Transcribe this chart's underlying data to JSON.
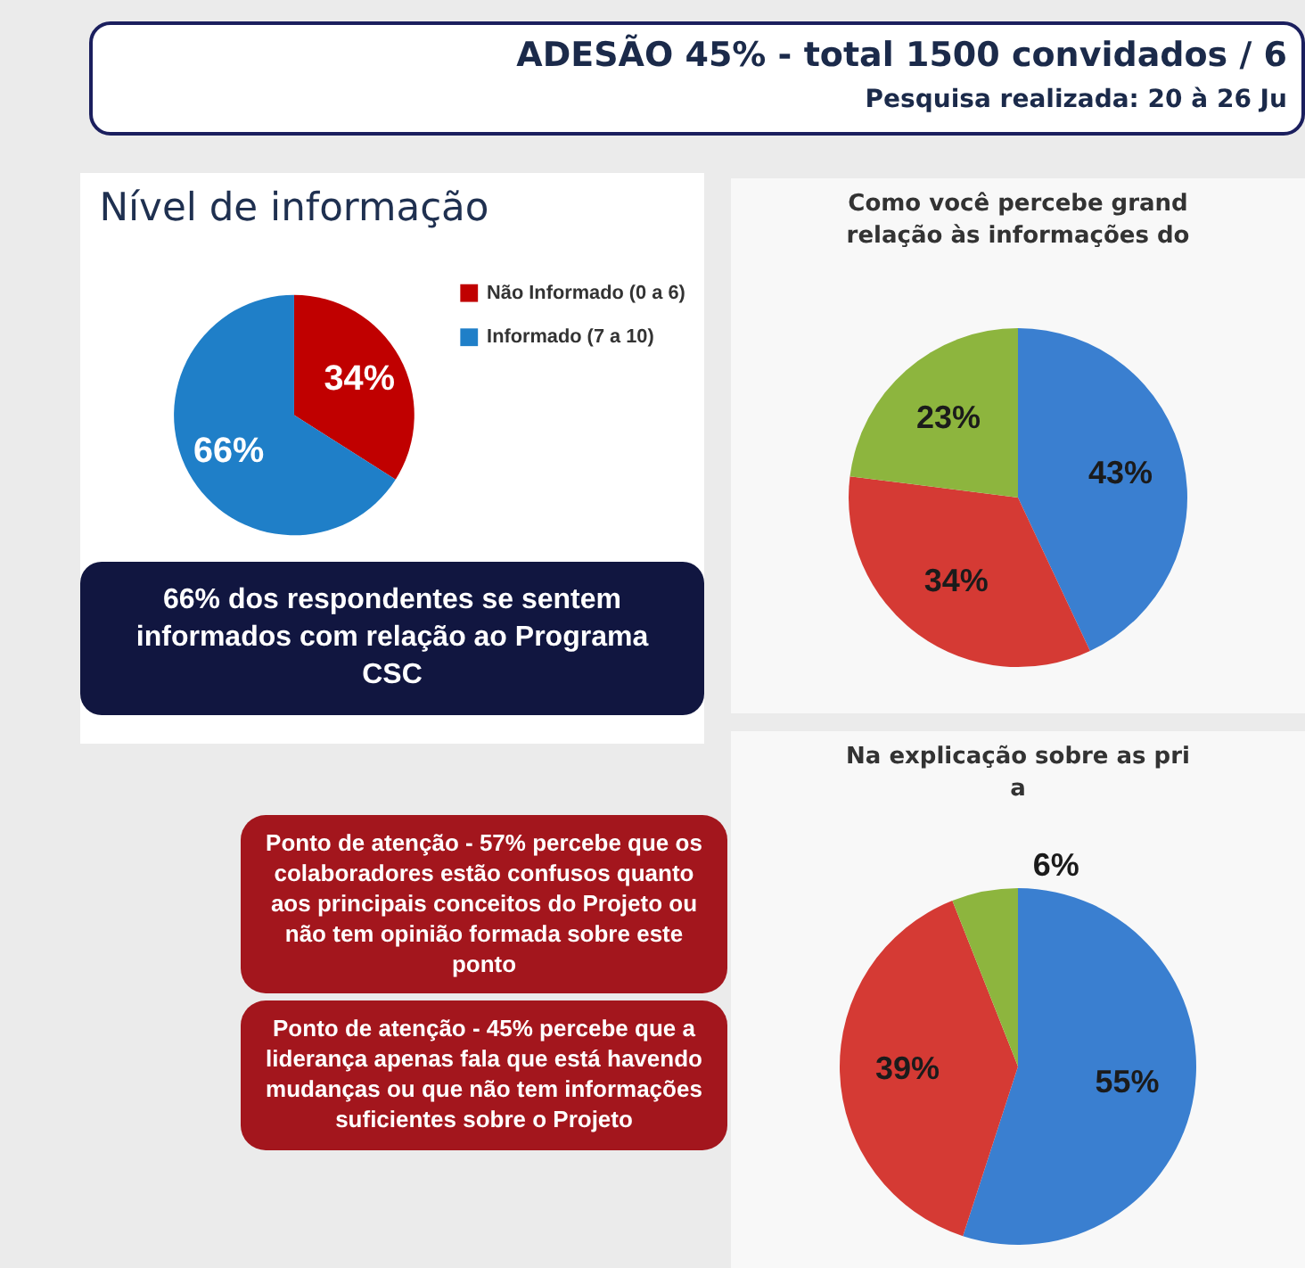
{
  "chart_data": [
    {
      "type": "other",
      "title": "ADESÃO 45% - total 1500 convidados / 6",
      "subtitle": "Pesquisa realizada: 20 à 26 Ju"
    },
    {
      "type": "pie",
      "title": "Nível de informação",
      "categories": [
        "Não Informado (0 a 6)",
        "Informado (7 a 10)"
      ],
      "values": [
        34,
        66
      ],
      "colors": [
        "#c00000",
        "#1f7fc8"
      ],
      "value_labels": [
        "34%",
        "66%"
      ],
      "legend": "right",
      "annotations": [
        "66% dos respondentes se sentem informados com relação ao Programa CSC"
      ]
    },
    {
      "type": "pie",
      "title": "Como você percebe grand\nrelação às informações do",
      "categories": [
        null,
        null,
        null
      ],
      "values": [
        43,
        34,
        23
      ],
      "colors": [
        "#3a7fd0",
        "#d53a34",
        "#8db53e"
      ],
      "value_labels": [
        "43%",
        "34%",
        "23%"
      ]
    },
    {
      "type": "pie",
      "title": "Na explicação sobre as pri\na",
      "categories": [
        null,
        null,
        null
      ],
      "values": [
        55,
        39,
        6
      ],
      "colors": [
        "#3a7fd0",
        "#d53a34",
        "#8db53e"
      ],
      "value_labels": [
        "55%",
        "39%",
        "6%"
      ]
    },
    {
      "type": "other",
      "annotations": [
        "Ponto de atenção - 57% percebe que os colaboradores estão confusos quanto aos principais conceitos do Projeto ou não tem opinião formada sobre este ponto",
        "Ponto de atenção - 45% percebe que a liderança apenas fala que está havendo mudanças ou que não tem informações suficientes sobre o Projeto"
      ]
    }
  ]
}
